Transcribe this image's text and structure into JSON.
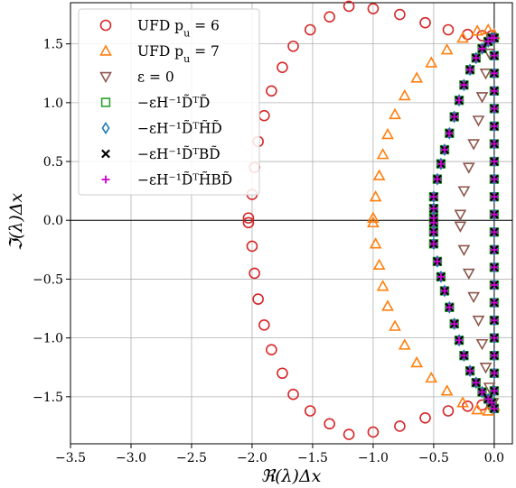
{
  "chart_data": {
    "type": "scatter",
    "title": "",
    "xlabel": "ℜ(λ)Δx",
    "ylabel": "ℑ(λ)Δx",
    "xlim": [
      -3.5,
      0.15
    ],
    "ylim": [
      -1.9,
      1.85
    ],
    "xticks": [
      -3.5,
      -3.0,
      -2.5,
      -2.0,
      -1.5,
      -1.0,
      -0.5,
      0.0
    ],
    "xtick_labels": [
      "−3.5",
      "−3.0",
      "−2.5",
      "−2.0",
      "−1.5",
      "−1.0",
      "−0.5",
      "0.0"
    ],
    "yticks": [
      -1.5,
      -1.0,
      -0.5,
      0.0,
      0.5,
      1.0,
      1.5
    ],
    "ytick_labels": [
      "−1.5",
      "−1.0",
      "−0.5",
      "0.0",
      "0.5",
      "1.0",
      "1.5"
    ],
    "grid": true,
    "legend_position": "top-left",
    "series": [
      {
        "name": "UFD p_u = 6",
        "label": "UFD p",
        "sub": "u",
        "suffix": " = 6",
        "marker": "circle",
        "color": "#d62728",
        "shape": "ufd6",
        "points": [
          [
            -2.03,
            -0.02
          ],
          [
            -2.0,
            -0.22
          ],
          [
            -1.98,
            -0.45
          ],
          [
            -1.95,
            -0.67
          ],
          [
            -1.9,
            -0.89
          ],
          [
            -1.84,
            -1.1
          ],
          [
            -1.75,
            -1.3
          ],
          [
            -1.66,
            -1.48
          ],
          [
            -1.52,
            -1.62
          ],
          [
            -1.36,
            -1.73
          ],
          [
            -1.2,
            -1.82
          ],
          [
            -1.0,
            -1.8
          ],
          [
            -0.78,
            -1.75
          ],
          [
            -0.57,
            -1.68
          ],
          [
            -0.38,
            -1.62
          ],
          [
            -0.22,
            -1.58
          ],
          [
            -0.1,
            -1.57
          ],
          [
            -0.02,
            -1.57
          ],
          [
            -2.03,
            0.02
          ],
          [
            -2.0,
            0.22
          ],
          [
            -1.98,
            0.45
          ],
          [
            -1.95,
            0.67
          ],
          [
            -1.9,
            0.89
          ],
          [
            -1.84,
            1.1
          ],
          [
            -1.75,
            1.3
          ],
          [
            -1.66,
            1.48
          ],
          [
            -1.52,
            1.62
          ],
          [
            -1.36,
            1.73
          ],
          [
            -1.2,
            1.82
          ],
          [
            -1.0,
            1.8
          ],
          [
            -0.78,
            1.75
          ],
          [
            -0.57,
            1.68
          ],
          [
            -0.38,
            1.62
          ],
          [
            -0.22,
            1.58
          ],
          [
            -0.1,
            1.57
          ],
          [
            -0.02,
            1.57
          ]
        ]
      },
      {
        "name": "UFD p_u = 7",
        "label": "UFD p",
        "sub": "u",
        "suffix": " = 7",
        "marker": "triangle-up",
        "color": "#ff7f0e",
        "shape": "ufd7",
        "points": [
          [
            -1.0,
            -0.02
          ],
          [
            -0.98,
            -0.2
          ],
          [
            -0.95,
            -0.38
          ],
          [
            -0.92,
            -0.56
          ],
          [
            -0.88,
            -0.73
          ],
          [
            -0.82,
            -0.9
          ],
          [
            -0.74,
            -1.06
          ],
          [
            -0.64,
            -1.21
          ],
          [
            -0.52,
            -1.34
          ],
          [
            -0.39,
            -1.45
          ],
          [
            -0.26,
            -1.55
          ],
          [
            -0.14,
            -1.61
          ],
          [
            -0.05,
            -1.62
          ],
          [
            -0.0,
            -1.58
          ],
          [
            -1.0,
            0.02
          ],
          [
            -0.98,
            0.2
          ],
          [
            -0.95,
            0.38
          ],
          [
            -0.92,
            0.56
          ],
          [
            -0.88,
            0.73
          ],
          [
            -0.82,
            0.9
          ],
          [
            -0.74,
            1.06
          ],
          [
            -0.64,
            1.21
          ],
          [
            -0.52,
            1.34
          ],
          [
            -0.39,
            1.45
          ],
          [
            -0.26,
            1.55
          ],
          [
            -0.14,
            1.61
          ],
          [
            -0.05,
            1.62
          ],
          [
            -0.0,
            1.58
          ]
        ]
      },
      {
        "name": "ε = 0",
        "label": "ε = 0",
        "sub": "",
        "suffix": "",
        "marker": "triangle-down",
        "color": "#8c564b",
        "shape": "eps0",
        "points": [
          [
            -0.28,
            -0.05
          ],
          [
            -0.25,
            -0.25
          ],
          [
            -0.21,
            -0.45
          ],
          [
            -0.17,
            -0.65
          ],
          [
            -0.13,
            -0.85
          ],
          [
            -0.1,
            -1.05
          ],
          [
            -0.07,
            -1.25
          ],
          [
            -0.04,
            -1.42
          ],
          [
            -0.01,
            -1.55
          ],
          [
            -0.28,
            0.05
          ],
          [
            -0.25,
            0.25
          ],
          [
            -0.21,
            0.45
          ],
          [
            -0.17,
            0.65
          ],
          [
            -0.13,
            0.85
          ],
          [
            -0.1,
            1.05
          ],
          [
            -0.07,
            1.25
          ],
          [
            -0.04,
            1.42
          ],
          [
            -0.01,
            1.55
          ]
        ]
      },
      {
        "name": "−εH⁻¹D̃ᵀD̃",
        "label": "−εH⁻¹D̃ᵀD̃",
        "sub": "",
        "suffix": "",
        "marker": "square",
        "color": "#2ca02c",
        "shape": "inner"
      },
      {
        "name": "−εH⁻¹D̃ᵀH̃D̃",
        "label": "−εH⁻¹D̃ᵀH̃D̃",
        "sub": "",
        "suffix": "",
        "marker": "diamond",
        "color": "#1f77b4",
        "shape": "inner"
      },
      {
        "name": "−εH⁻¹D̃ᵀBD̃",
        "label": "−εH⁻¹D̃ᵀBD̃",
        "sub": "",
        "suffix": "",
        "marker": "x",
        "color": "#000000",
        "shape": "inner"
      },
      {
        "name": "−εH⁻¹D̃ᵀH̃BD̃",
        "label": "−εH⁻¹D̃ᵀH̃BD̃",
        "sub": "",
        "suffix": "",
        "marker": "plus",
        "color": "#cc00cc",
        "shape": "inner"
      }
    ],
    "inner_points": [
      [
        -0.5,
        -0.02
      ],
      [
        -0.5,
        -0.1
      ],
      [
        -0.5,
        -0.2
      ],
      [
        -0.47,
        -0.35
      ],
      [
        -0.44,
        -0.48
      ],
      [
        -0.41,
        -0.6
      ],
      [
        -0.37,
        -0.74
      ],
      [
        -0.33,
        -0.88
      ],
      [
        -0.29,
        -1.02
      ],
      [
        -0.25,
        -1.15
      ],
      [
        -0.2,
        -1.28
      ],
      [
        -0.15,
        -1.38
      ],
      [
        -0.1,
        -1.46
      ],
      [
        -0.05,
        -1.52
      ],
      [
        -0.02,
        -1.55
      ],
      [
        -0.5,
        0.02
      ],
      [
        -0.5,
        0.1
      ],
      [
        -0.5,
        0.2
      ],
      [
        -0.47,
        0.35
      ],
      [
        -0.44,
        0.48
      ],
      [
        -0.41,
        0.6
      ],
      [
        -0.37,
        0.74
      ],
      [
        -0.33,
        0.88
      ],
      [
        -0.29,
        1.02
      ],
      [
        -0.25,
        1.15
      ],
      [
        -0.2,
        1.28
      ],
      [
        -0.15,
        1.38
      ],
      [
        -0.1,
        1.46
      ],
      [
        -0.05,
        1.52
      ],
      [
        -0.02,
        1.55
      ]
    ],
    "axis_points": [
      [
        -0.0,
        -1.6
      ],
      [
        -0.0,
        -1.45
      ],
      [
        -0.0,
        -1.3
      ],
      [
        -0.0,
        -1.15
      ],
      [
        -0.0,
        -1.0
      ],
      [
        -0.0,
        -0.85
      ],
      [
        -0.0,
        -0.7
      ],
      [
        -0.0,
        -0.55
      ],
      [
        -0.0,
        -0.4
      ],
      [
        -0.0,
        -0.25
      ],
      [
        -0.0,
        -0.1
      ],
      [
        -0.0,
        0.05
      ],
      [
        -0.0,
        0.2
      ],
      [
        -0.0,
        0.35
      ],
      [
        -0.0,
        0.5
      ],
      [
        -0.0,
        0.65
      ],
      [
        -0.0,
        0.8
      ],
      [
        -0.0,
        0.95
      ],
      [
        -0.0,
        1.1
      ],
      [
        -0.0,
        1.25
      ],
      [
        -0.0,
        1.4
      ],
      [
        -0.0,
        1.55
      ]
    ]
  }
}
